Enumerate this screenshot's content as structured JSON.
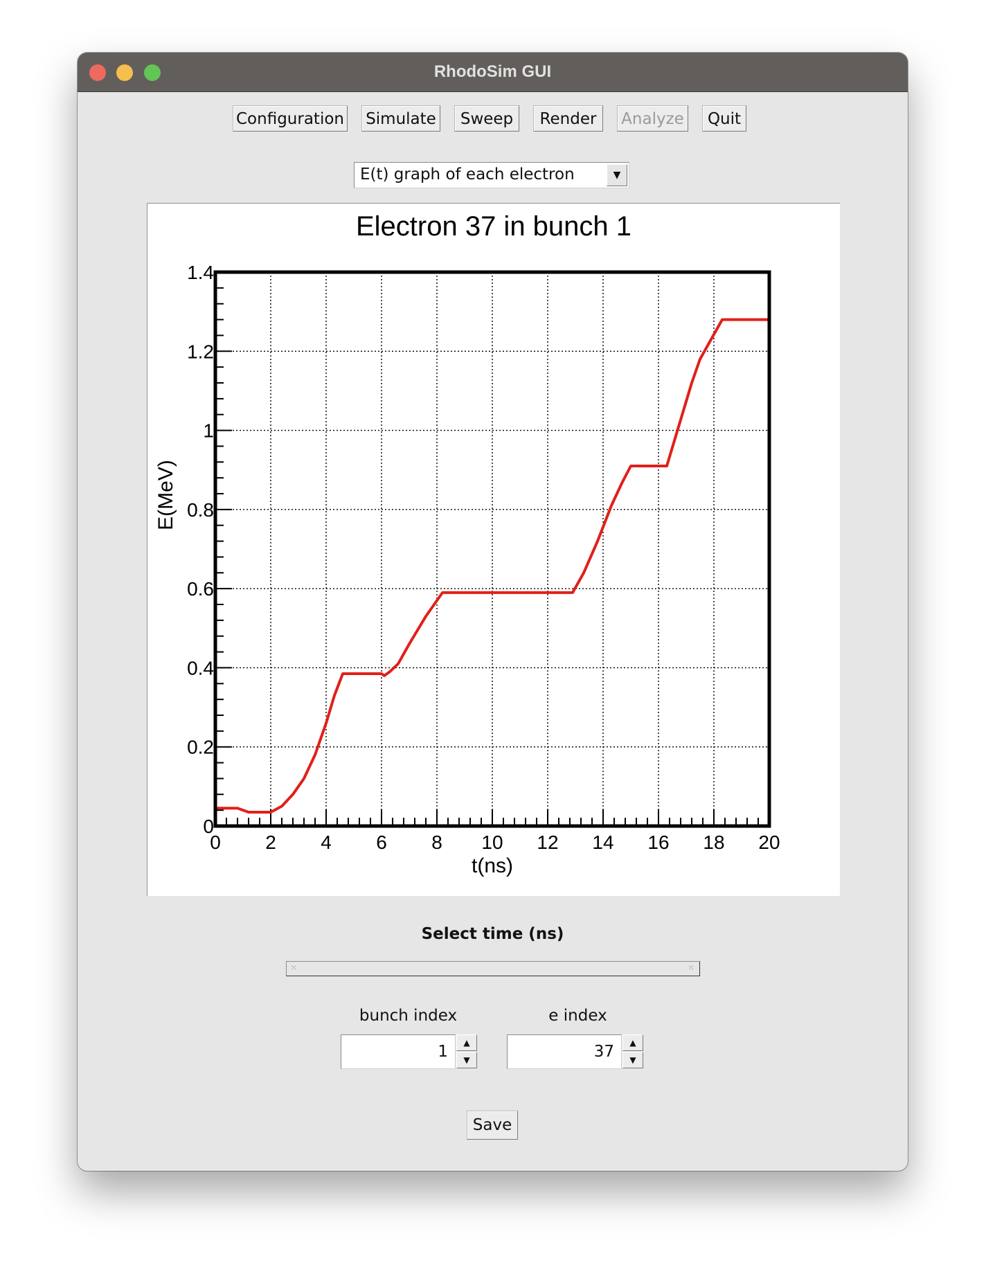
{
  "window": {
    "title": "RhodoSim GUI"
  },
  "toolbar": {
    "buttons": [
      {
        "label": "Configuration",
        "enabled": true
      },
      {
        "label": "Simulate",
        "enabled": true
      },
      {
        "label": "Sweep",
        "enabled": true
      },
      {
        "label": "Render",
        "enabled": true
      },
      {
        "label": "Analyze",
        "enabled": false
      },
      {
        "label": "Quit",
        "enabled": true
      }
    ]
  },
  "graph_select": {
    "selected": "E(t) graph of each electron"
  },
  "chart_data": {
    "type": "line",
    "title": "Electron 37 in bunch 1",
    "xlabel": "t(ns)",
    "ylabel": "E(MeV)",
    "xlim": [
      0,
      20
    ],
    "ylim": [
      0,
      1.4
    ],
    "xticks": [
      "0",
      "2",
      "4",
      "6",
      "8",
      "10",
      "12",
      "14",
      "16",
      "18",
      "20"
    ],
    "yticks": [
      "0",
      "0.2",
      "0.4",
      "0.6",
      "0.8",
      "1",
      "1.2",
      "1.4"
    ],
    "grid": true,
    "line_color": "#e0201a",
    "series": [
      {
        "x": [
          0,
          0.8,
          1.2,
          2.0,
          2.4,
          2.8,
          3.2,
          3.6,
          4.0,
          4.3,
          4.6,
          6.0,
          6.1,
          6.3,
          6.6,
          7.0,
          7.6,
          8.2,
          12.9,
          13.3,
          13.8,
          14.3,
          14.7,
          15.0,
          16.3,
          16.6,
          16.9,
          17.2,
          17.5,
          17.9,
          18.3,
          20.0
        ],
        "y": [
          0.045,
          0.045,
          0.035,
          0.035,
          0.05,
          0.08,
          0.12,
          0.18,
          0.26,
          0.33,
          0.385,
          0.385,
          0.38,
          0.39,
          0.41,
          0.46,
          0.53,
          0.59,
          0.59,
          0.64,
          0.72,
          0.81,
          0.87,
          0.91,
          0.91,
          0.98,
          1.05,
          1.12,
          1.18,
          1.23,
          1.28,
          1.28
        ]
      }
    ]
  },
  "time_select": {
    "label": "Select time (ns)"
  },
  "bunch_index": {
    "label": "bunch index",
    "value": "1"
  },
  "e_index": {
    "label": "e index",
    "value": "37"
  },
  "save": {
    "label": "Save"
  }
}
